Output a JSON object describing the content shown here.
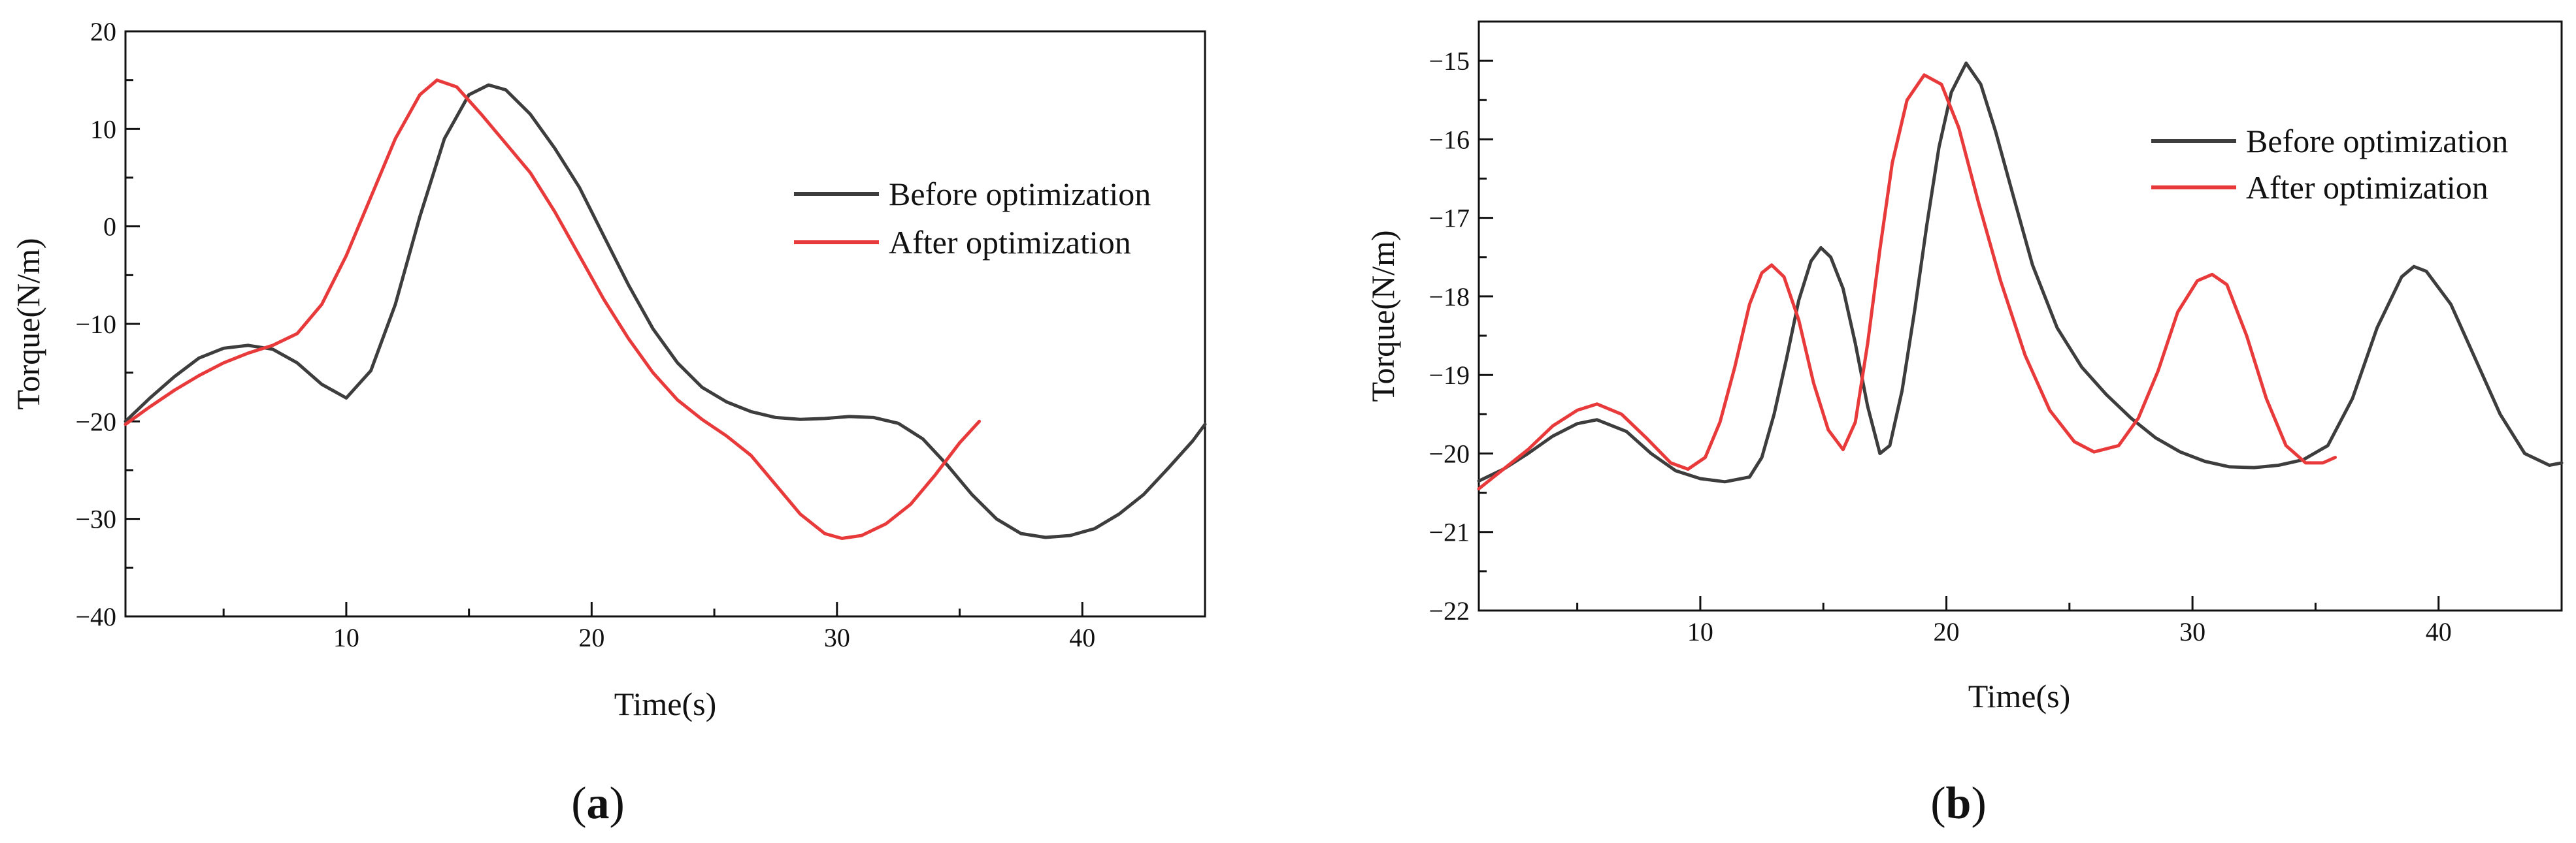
{
  "chart_data": [
    {
      "type": "line",
      "panel_label": "a",
      "xlabel": "Time(s)",
      "ylabel": "Torque(N/m)",
      "xlim": [
        1,
        45
      ],
      "ylim": [
        -40,
        20
      ],
      "xticks": [
        10,
        20,
        30,
        40
      ],
      "yticks": [
        -40,
        -30,
        -20,
        -10,
        0,
        10,
        20
      ],
      "ytick_labels": [
        "−40",
        "−30",
        "−20",
        "−10",
        "0",
        "10",
        "20"
      ],
      "minor_x": 5,
      "minor_y": 5,
      "legend": {
        "position": "center-right"
      },
      "series": [
        {
          "name": "Before optimization",
          "color": "#3d3d3d",
          "points": [
            [
              1,
              -20
            ],
            [
              2,
              -17.6
            ],
            [
              3,
              -15.4
            ],
            [
              4,
              -13.5
            ],
            [
              5,
              -12.5
            ],
            [
              6,
              -12.2
            ],
            [
              7,
              -12.6
            ],
            [
              8,
              -14
            ],
            [
              9,
              -16.2
            ],
            [
              10,
              -17.6
            ],
            [
              11,
              -14.8
            ],
            [
              12,
              -8
            ],
            [
              13,
              1
            ],
            [
              14,
              9
            ],
            [
              15,
              13.5
            ],
            [
              15.8,
              14.5
            ],
            [
              16.5,
              14
            ],
            [
              17.5,
              11.5
            ],
            [
              18.5,
              8
            ],
            [
              19.5,
              4
            ],
            [
              20.5,
              -1
            ],
            [
              21.5,
              -6
            ],
            [
              22.5,
              -10.5
            ],
            [
              23.5,
              -14
            ],
            [
              24.5,
              -16.5
            ],
            [
              25.5,
              -18
            ],
            [
              26.5,
              -19
            ],
            [
              27.5,
              -19.6
            ],
            [
              28.5,
              -19.8
            ],
            [
              29.5,
              -19.7
            ],
            [
              30.5,
              -19.5
            ],
            [
              31.5,
              -19.6
            ],
            [
              32.5,
              -20.2
            ],
            [
              33.5,
              -21.8
            ],
            [
              34.5,
              -24.5
            ],
            [
              35.5,
              -27.5
            ],
            [
              36.5,
              -30
            ],
            [
              37.5,
              -31.5
            ],
            [
              38.5,
              -31.9
            ],
            [
              39.5,
              -31.7
            ],
            [
              40.5,
              -31
            ],
            [
              41.5,
              -29.5
            ],
            [
              42.5,
              -27.5
            ],
            [
              43.5,
              -24.8
            ],
            [
              44.5,
              -22
            ],
            [
              45,
              -20.3
            ]
          ]
        },
        {
          "name": "After optimization",
          "color": "#e83a3a",
          "points": [
            [
              1,
              -20.3
            ],
            [
              2,
              -18.5
            ],
            [
              3,
              -16.8
            ],
            [
              4,
              -15.3
            ],
            [
              5,
              -14
            ],
            [
              6,
              -13
            ],
            [
              7,
              -12.2
            ],
            [
              8,
              -11
            ],
            [
              9,
              -8
            ],
            [
              10,
              -3
            ],
            [
              11,
              3
            ],
            [
              12,
              9
            ],
            [
              13,
              13.5
            ],
            [
              13.7,
              15
            ],
            [
              14.5,
              14.3
            ],
            [
              15.5,
              11.5
            ],
            [
              16.5,
              8.5
            ],
            [
              17.5,
              5.5
            ],
            [
              18.5,
              1.5
            ],
            [
              19.5,
              -3
            ],
            [
              20.5,
              -7.5
            ],
            [
              21.5,
              -11.5
            ],
            [
              22.5,
              -15
            ],
            [
              23.5,
              -17.8
            ],
            [
              24.5,
              -19.8
            ],
            [
              25.5,
              -21.5
            ],
            [
              26.5,
              -23.5
            ],
            [
              27.5,
              -26.5
            ],
            [
              28.5,
              -29.5
            ],
            [
              29.5,
              -31.5
            ],
            [
              30.2,
              -32
            ],
            [
              31,
              -31.7
            ],
            [
              32,
              -30.5
            ],
            [
              33,
              -28.5
            ],
            [
              34,
              -25.5
            ],
            [
              35,
              -22.2
            ],
            [
              35.8,
              -20
            ]
          ]
        }
      ]
    },
    {
      "type": "line",
      "panel_label": "b",
      "xlabel": "Time(s)",
      "ylabel": "Torque(N/m)",
      "xlim": [
        1,
        45
      ],
      "ylim": [
        -22,
        -14.5
      ],
      "xticks": [
        10,
        20,
        30,
        40
      ],
      "yticks": [
        -22,
        -21,
        -20,
        -19,
        -18,
        -17,
        -16,
        -15
      ],
      "ytick_labels": [
        "−22",
        "−21",
        "−20",
        "−19",
        "−18",
        "−17",
        "−16",
        "−15"
      ],
      "minor_x": 5,
      "minor_y": 0.5,
      "legend": {
        "position": "top-right"
      },
      "series": [
        {
          "name": "Before optimization",
          "color": "#3d3d3d",
          "points": [
            [
              1,
              -20.35
            ],
            [
              2,
              -20.2
            ],
            [
              3,
              -20
            ],
            [
              4,
              -19.78
            ],
            [
              5,
              -19.62
            ],
            [
              5.8,
              -19.57
            ],
            [
              7,
              -19.72
            ],
            [
              8,
              -20
            ],
            [
              9,
              -20.22
            ],
            [
              10,
              -20.32
            ],
            [
              11,
              -20.36
            ],
            [
              12,
              -20.3
            ],
            [
              12.5,
              -20.05
            ],
            [
              13,
              -19.5
            ],
            [
              13.5,
              -18.8
            ],
            [
              14,
              -18.05
            ],
            [
              14.5,
              -17.55
            ],
            [
              14.9,
              -17.38
            ],
            [
              15.3,
              -17.5
            ],
            [
              15.8,
              -17.9
            ],
            [
              16.3,
              -18.6
            ],
            [
              16.8,
              -19.4
            ],
            [
              17.3,
              -20
            ],
            [
              17.7,
              -19.9
            ],
            [
              18.2,
              -19.2
            ],
            [
              18.7,
              -18.2
            ],
            [
              19.2,
              -17.1
            ],
            [
              19.7,
              -16.1
            ],
            [
              20.2,
              -15.4
            ],
            [
              20.8,
              -15.03
            ],
            [
              21.4,
              -15.3
            ],
            [
              22,
              -15.9
            ],
            [
              22.7,
              -16.7
            ],
            [
              23.5,
              -17.6
            ],
            [
              24.5,
              -18.4
            ],
            [
              25.5,
              -18.9
            ],
            [
              26.5,
              -19.25
            ],
            [
              27.5,
              -19.55
            ],
            [
              28.5,
              -19.8
            ],
            [
              29.5,
              -19.98
            ],
            [
              30.5,
              -20.1
            ],
            [
              31.5,
              -20.17
            ],
            [
              32.5,
              -20.18
            ],
            [
              33.5,
              -20.15
            ],
            [
              34.5,
              -20.08
            ],
            [
              35.5,
              -19.9
            ],
            [
              36.5,
              -19.3
            ],
            [
              37.5,
              -18.4
            ],
            [
              38.5,
              -17.75
            ],
            [
              39,
              -17.62
            ],
            [
              39.5,
              -17.68
            ],
            [
              40.5,
              -18.1
            ],
            [
              41.5,
              -18.8
            ],
            [
              42.5,
              -19.5
            ],
            [
              43.5,
              -20
            ],
            [
              44.5,
              -20.15
            ],
            [
              45,
              -20.12
            ]
          ]
        },
        {
          "name": "After optimization",
          "color": "#e83a3a",
          "points": [
            [
              1,
              -20.45
            ],
            [
              2,
              -20.2
            ],
            [
              3,
              -19.95
            ],
            [
              4,
              -19.65
            ],
            [
              5,
              -19.45
            ],
            [
              5.8,
              -19.37
            ],
            [
              6.8,
              -19.5
            ],
            [
              7.8,
              -19.8
            ],
            [
              8.8,
              -20.12
            ],
            [
              9.5,
              -20.2
            ],
            [
              10.2,
              -20.05
            ],
            [
              10.8,
              -19.6
            ],
            [
              11.4,
              -18.9
            ],
            [
              12,
              -18.1
            ],
            [
              12.5,
              -17.7
            ],
            [
              12.9,
              -17.6
            ],
            [
              13.4,
              -17.75
            ],
            [
              14,
              -18.3
            ],
            [
              14.6,
              -19.1
            ],
            [
              15.2,
              -19.7
            ],
            [
              15.8,
              -19.95
            ],
            [
              16.3,
              -19.6
            ],
            [
              16.8,
              -18.6
            ],
            [
              17.3,
              -17.4
            ],
            [
              17.8,
              -16.3
            ],
            [
              18.4,
              -15.5
            ],
            [
              19.1,
              -15.18
            ],
            [
              19.8,
              -15.3
            ],
            [
              20.5,
              -15.85
            ],
            [
              21.3,
              -16.8
            ],
            [
              22.2,
              -17.8
            ],
            [
              23.2,
              -18.75
            ],
            [
              24.2,
              -19.45
            ],
            [
              25.2,
              -19.85
            ],
            [
              26,
              -19.98
            ],
            [
              27,
              -19.9
            ],
            [
              27.8,
              -19.55
            ],
            [
              28.6,
              -18.95
            ],
            [
              29.4,
              -18.2
            ],
            [
              30.2,
              -17.8
            ],
            [
              30.8,
              -17.72
            ],
            [
              31.4,
              -17.85
            ],
            [
              32.2,
              -18.5
            ],
            [
              33,
              -19.3
            ],
            [
              33.8,
              -19.9
            ],
            [
              34.6,
              -20.12
            ],
            [
              35.3,
              -20.12
            ],
            [
              35.8,
              -20.05
            ]
          ]
        }
      ]
    }
  ]
}
